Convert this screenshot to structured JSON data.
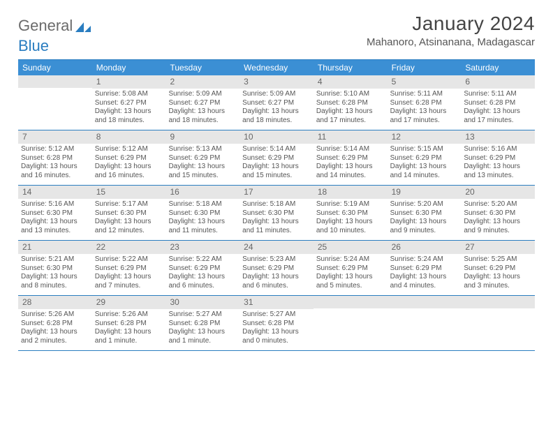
{
  "brand": {
    "word1": "General",
    "word2": "Blue"
  },
  "title": "January 2024",
  "location": "Mahanoro, Atsinanana, Madagascar",
  "colors": {
    "header_bg": "#3b8fd4",
    "border": "#2a7dc0",
    "daynum_bg": "#e6e6e6",
    "text": "#555555"
  },
  "weekdays": [
    "Sunday",
    "Monday",
    "Tuesday",
    "Wednesday",
    "Thursday",
    "Friday",
    "Saturday"
  ],
  "startOffset": 1,
  "days": [
    {
      "n": 1,
      "sunrise": "5:08 AM",
      "sunset": "6:27 PM",
      "daylight": "13 hours and 18 minutes."
    },
    {
      "n": 2,
      "sunrise": "5:09 AM",
      "sunset": "6:27 PM",
      "daylight": "13 hours and 18 minutes."
    },
    {
      "n": 3,
      "sunrise": "5:09 AM",
      "sunset": "6:27 PM",
      "daylight": "13 hours and 18 minutes."
    },
    {
      "n": 4,
      "sunrise": "5:10 AM",
      "sunset": "6:28 PM",
      "daylight": "13 hours and 17 minutes."
    },
    {
      "n": 5,
      "sunrise": "5:11 AM",
      "sunset": "6:28 PM",
      "daylight": "13 hours and 17 minutes."
    },
    {
      "n": 6,
      "sunrise": "5:11 AM",
      "sunset": "6:28 PM",
      "daylight": "13 hours and 17 minutes."
    },
    {
      "n": 7,
      "sunrise": "5:12 AM",
      "sunset": "6:28 PM",
      "daylight": "13 hours and 16 minutes."
    },
    {
      "n": 8,
      "sunrise": "5:12 AM",
      "sunset": "6:29 PM",
      "daylight": "13 hours and 16 minutes."
    },
    {
      "n": 9,
      "sunrise": "5:13 AM",
      "sunset": "6:29 PM",
      "daylight": "13 hours and 15 minutes."
    },
    {
      "n": 10,
      "sunrise": "5:14 AM",
      "sunset": "6:29 PM",
      "daylight": "13 hours and 15 minutes."
    },
    {
      "n": 11,
      "sunrise": "5:14 AM",
      "sunset": "6:29 PM",
      "daylight": "13 hours and 14 minutes."
    },
    {
      "n": 12,
      "sunrise": "5:15 AM",
      "sunset": "6:29 PM",
      "daylight": "13 hours and 14 minutes."
    },
    {
      "n": 13,
      "sunrise": "5:16 AM",
      "sunset": "6:29 PM",
      "daylight": "13 hours and 13 minutes."
    },
    {
      "n": 14,
      "sunrise": "5:16 AM",
      "sunset": "6:30 PM",
      "daylight": "13 hours and 13 minutes."
    },
    {
      "n": 15,
      "sunrise": "5:17 AM",
      "sunset": "6:30 PM",
      "daylight": "13 hours and 12 minutes."
    },
    {
      "n": 16,
      "sunrise": "5:18 AM",
      "sunset": "6:30 PM",
      "daylight": "13 hours and 11 minutes."
    },
    {
      "n": 17,
      "sunrise": "5:18 AM",
      "sunset": "6:30 PM",
      "daylight": "13 hours and 11 minutes."
    },
    {
      "n": 18,
      "sunrise": "5:19 AM",
      "sunset": "6:30 PM",
      "daylight": "13 hours and 10 minutes."
    },
    {
      "n": 19,
      "sunrise": "5:20 AM",
      "sunset": "6:30 PM",
      "daylight": "13 hours and 9 minutes."
    },
    {
      "n": 20,
      "sunrise": "5:20 AM",
      "sunset": "6:30 PM",
      "daylight": "13 hours and 9 minutes."
    },
    {
      "n": 21,
      "sunrise": "5:21 AM",
      "sunset": "6:30 PM",
      "daylight": "13 hours and 8 minutes."
    },
    {
      "n": 22,
      "sunrise": "5:22 AM",
      "sunset": "6:29 PM",
      "daylight": "13 hours and 7 minutes."
    },
    {
      "n": 23,
      "sunrise": "5:22 AM",
      "sunset": "6:29 PM",
      "daylight": "13 hours and 6 minutes."
    },
    {
      "n": 24,
      "sunrise": "5:23 AM",
      "sunset": "6:29 PM",
      "daylight": "13 hours and 6 minutes."
    },
    {
      "n": 25,
      "sunrise": "5:24 AM",
      "sunset": "6:29 PM",
      "daylight": "13 hours and 5 minutes."
    },
    {
      "n": 26,
      "sunrise": "5:24 AM",
      "sunset": "6:29 PM",
      "daylight": "13 hours and 4 minutes."
    },
    {
      "n": 27,
      "sunrise": "5:25 AM",
      "sunset": "6:29 PM",
      "daylight": "13 hours and 3 minutes."
    },
    {
      "n": 28,
      "sunrise": "5:26 AM",
      "sunset": "6:28 PM",
      "daylight": "13 hours and 2 minutes."
    },
    {
      "n": 29,
      "sunrise": "5:26 AM",
      "sunset": "6:28 PM",
      "daylight": "13 hours and 1 minute."
    },
    {
      "n": 30,
      "sunrise": "5:27 AM",
      "sunset": "6:28 PM",
      "daylight": "13 hours and 1 minute."
    },
    {
      "n": 31,
      "sunrise": "5:27 AM",
      "sunset": "6:28 PM",
      "daylight": "13 hours and 0 minutes."
    }
  ],
  "labels": {
    "sunrise": "Sunrise:",
    "sunset": "Sunset:",
    "daylight": "Daylight:"
  }
}
